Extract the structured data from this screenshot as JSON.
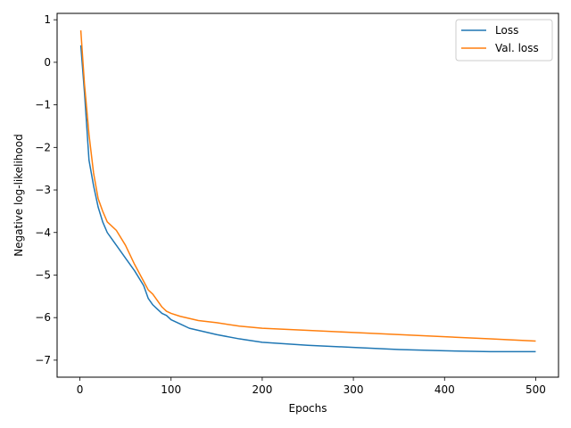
{
  "chart_data": {
    "type": "line",
    "xlabel": "Epochs",
    "ylabel": "Negative log-likelihood",
    "xlim": [
      -25,
      525
    ],
    "ylim": [
      -7.4,
      1.15
    ],
    "x_ticks": [
      0,
      100,
      200,
      300,
      400,
      500
    ],
    "y_ticks": [
      1,
      0,
      -1,
      -2,
      -3,
      -4,
      -5,
      -6,
      -7
    ],
    "x_tick_labels": [
      "0",
      "100",
      "200",
      "300",
      "400",
      "500"
    ],
    "y_tick_labels": [
      "1",
      "0",
      "−1",
      "−2",
      "−3",
      "−4",
      "−5",
      "−6",
      "−7"
    ],
    "grid": false,
    "legend_position": "top-right",
    "x": [
      1,
      5,
      10,
      15,
      20,
      25,
      30,
      40,
      50,
      60,
      70,
      75,
      80,
      85,
      90,
      95,
      100,
      110,
      120,
      130,
      150,
      175,
      200,
      250,
      300,
      350,
      400,
      450,
      500
    ],
    "series": [
      {
        "name": "Loss",
        "color": "#1f77b4",
        "values": [
          0.4,
          -0.7,
          -2.3,
          -2.9,
          -3.4,
          -3.75,
          -4.0,
          -4.3,
          -4.6,
          -4.9,
          -5.25,
          -5.55,
          -5.7,
          -5.8,
          -5.9,
          -5.95,
          -6.05,
          -6.15,
          -6.25,
          -6.3,
          -6.4,
          -6.5,
          -6.58,
          -6.65,
          -6.7,
          -6.75,
          -6.78,
          -6.8,
          -6.8
        ]
      },
      {
        "name": "Val. loss",
        "color": "#ff7f0e",
        "values": [
          0.75,
          -0.5,
          -1.7,
          -2.6,
          -3.2,
          -3.5,
          -3.75,
          -3.95,
          -4.3,
          -4.75,
          -5.15,
          -5.35,
          -5.45,
          -5.6,
          -5.75,
          -5.85,
          -5.9,
          -5.97,
          -6.02,
          -6.07,
          -6.12,
          -6.2,
          -6.25,
          -6.3,
          -6.35,
          -6.4,
          -6.45,
          -6.5,
          -6.55
        ]
      }
    ]
  }
}
